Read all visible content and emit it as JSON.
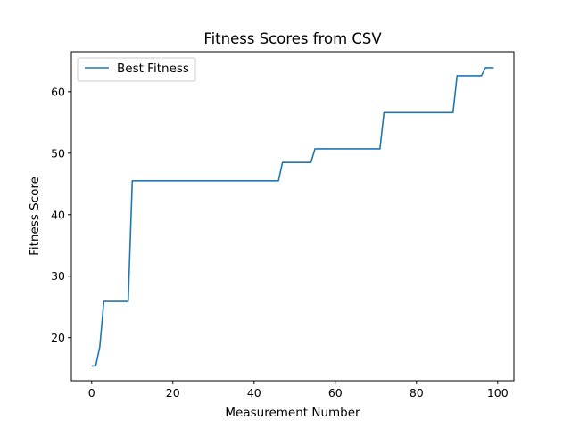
{
  "chart_data": {
    "type": "line",
    "title": "Fitness Scores from CSV",
    "xlabel": "Measurement Number",
    "ylabel": "Fitness Score",
    "xlim": [
      -5,
      104
    ],
    "ylim": [
      13.0,
      66.5
    ],
    "xticks": [
      0,
      20,
      40,
      60,
      80,
      100
    ],
    "yticks": [
      20,
      30,
      40,
      50,
      60
    ],
    "grid": false,
    "legend_position": "top-left",
    "series": [
      {
        "name": "Best Fitness",
        "color": "#1f77b4",
        "x": [
          0,
          1,
          2,
          3,
          4,
          5,
          6,
          7,
          8,
          9,
          10,
          11,
          12,
          13,
          14,
          15,
          16,
          17,
          18,
          19,
          20,
          21,
          22,
          23,
          24,
          25,
          26,
          27,
          28,
          29,
          30,
          31,
          32,
          33,
          34,
          35,
          36,
          37,
          38,
          39,
          40,
          41,
          42,
          43,
          44,
          45,
          46,
          47,
          48,
          49,
          50,
          51,
          52,
          53,
          54,
          55,
          56,
          57,
          58,
          59,
          60,
          61,
          62,
          63,
          64,
          65,
          66,
          67,
          68,
          69,
          70,
          71,
          72,
          73,
          74,
          75,
          76,
          77,
          78,
          79,
          80,
          81,
          82,
          83,
          84,
          85,
          86,
          87,
          88,
          89,
          90,
          91,
          92,
          93,
          94,
          95,
          96,
          97,
          98,
          99
        ],
        "y": [
          15.4,
          15.4,
          18.5,
          25.9,
          25.9,
          25.9,
          25.9,
          25.9,
          25.9,
          25.9,
          45.5,
          45.5,
          45.5,
          45.5,
          45.5,
          45.5,
          45.5,
          45.5,
          45.5,
          45.5,
          45.5,
          45.5,
          45.5,
          45.5,
          45.5,
          45.5,
          45.5,
          45.5,
          45.5,
          45.5,
          45.5,
          45.5,
          45.5,
          45.5,
          45.5,
          45.5,
          45.5,
          45.5,
          45.5,
          45.5,
          45.5,
          45.5,
          45.5,
          45.5,
          45.5,
          45.5,
          45.5,
          48.5,
          48.5,
          48.5,
          48.5,
          48.5,
          48.5,
          48.5,
          48.5,
          50.7,
          50.7,
          50.7,
          50.7,
          50.7,
          50.7,
          50.7,
          50.7,
          50.7,
          50.7,
          50.7,
          50.7,
          50.7,
          50.7,
          50.7,
          50.7,
          50.7,
          56.6,
          56.6,
          56.6,
          56.6,
          56.6,
          56.6,
          56.6,
          56.6,
          56.6,
          56.6,
          56.6,
          56.6,
          56.6,
          56.6,
          56.6,
          56.6,
          56.6,
          56.6,
          62.6,
          62.6,
          62.6,
          62.6,
          62.6,
          62.6,
          62.6,
          63.9,
          63.9,
          63.9
        ]
      }
    ]
  }
}
